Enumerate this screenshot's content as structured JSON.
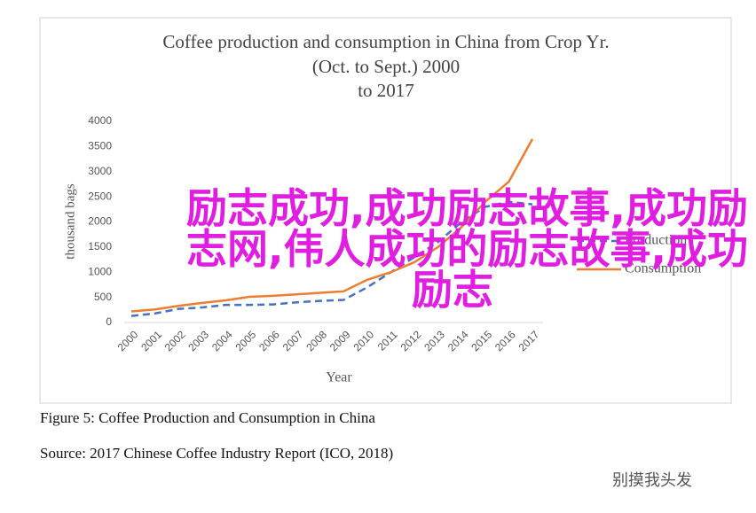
{
  "chart_data": {
    "type": "line",
    "title": [
      "Coffee  production and consumption in China from Crop Yr.",
      "(Oct. to Sept.) 2000",
      "to 2017"
    ],
    "y_label": "thousand bags",
    "x_label": "Year",
    "categories": [
      "2000",
      "2001",
      "2002",
      "2003",
      "2004",
      "2005",
      "2006",
      "2007",
      "2008",
      "2009",
      "2010",
      "2011",
      "2012",
      "2013",
      "2014",
      "2015",
      "2016",
      "2017"
    ],
    "series": [
      {
        "name": "Production",
        "color": "#4472c4",
        "dash": true,
        "values": [
          130,
          180,
          270,
          300,
          350,
          350,
          360,
          400,
          430,
          450,
          700,
          1000,
          1300,
          1600,
          2000,
          2300,
          2400,
          2350
        ]
      },
      {
        "name": "Consumption",
        "color": "#ed7d31",
        "dash": false,
        "values": [
          220,
          260,
          330,
          390,
          440,
          510,
          530,
          560,
          590,
          620,
          850,
          1000,
          1200,
          1500,
          1900,
          2400,
          2800,
          3650
        ]
      }
    ],
    "ylim": [
      0,
      4000
    ],
    "yticks": [
      0,
      500,
      1000,
      1500,
      2000,
      2500,
      3000,
      3500,
      4000
    ],
    "grid": false,
    "legend": "right"
  },
  "caption": "Figure 5: Coffee Production and Consumption in China",
  "source": "Source: 2017 Chinese Coffee Industry Report (ICO, 2018)",
  "overlay": [
    "励志成功,成功励志故事,成功励",
    "志网,伟人成功的励志故事,成功",
    "励志"
  ],
  "watermark": "别摸我头发"
}
